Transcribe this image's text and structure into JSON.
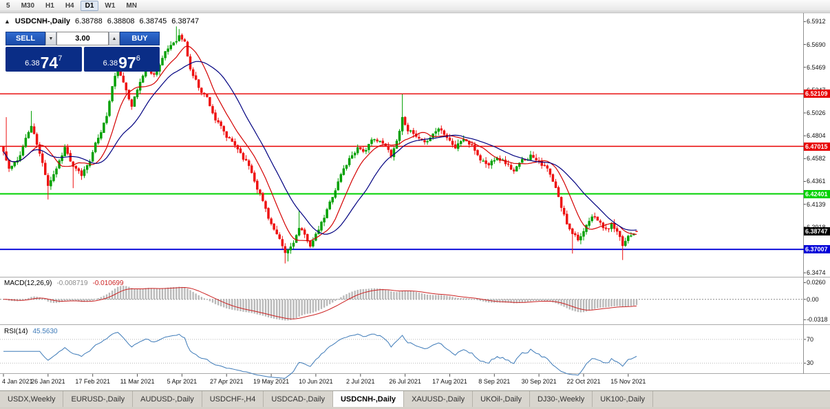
{
  "toolbar": {
    "timeframes": [
      "5",
      "M30",
      "H1",
      "H4",
      "D1",
      "W1",
      "MN"
    ],
    "active": "D1"
  },
  "chart": {
    "collapse_icon": "▲",
    "symbol_title": "USDCNH-,Daily",
    "ohlc": [
      "6.38788",
      "6.38808",
      "6.38745",
      "6.38747"
    ]
  },
  "one_click": {
    "sell_label": "SELL",
    "buy_label": "BUY",
    "volume": "3.00",
    "down_icon": "▼",
    "up_icon": "▲",
    "sell_quote": {
      "prefix": "6.38",
      "big": "74",
      "sup": "7"
    },
    "buy_quote": {
      "prefix": "6.38",
      "big": "97",
      "sup": "6"
    }
  },
  "price_axis_ticks": [
    "6.5912",
    "6.5690",
    "6.5469",
    "6.5247",
    "6.5026",
    "6.4804",
    "6.4582",
    "6.4361",
    "6.4139",
    "6.3918",
    "6.3696",
    "6.3474"
  ],
  "hlines": [
    {
      "label": "6.52109",
      "price": 6.52109,
      "color": "#e80000",
      "text_color": "#ffffff",
      "width": 1.4
    },
    {
      "label": "6.47015",
      "price": 6.47015,
      "color": "#e80000",
      "text_color": "#ffffff",
      "width": 1.4
    },
    {
      "label": "6.42401",
      "price": 6.42401,
      "color": "#00d200",
      "text_color": "#ffffff",
      "width": 2
    },
    {
      "label": "6.37007",
      "price": 6.37007,
      "color": "#0000d8",
      "text_color": "#ffffff",
      "width": 1.8
    }
  ],
  "current_price": {
    "label": "6.38747",
    "price": 6.38747,
    "bg": "#000000",
    "text_color": "#ffffff"
  },
  "macd_panel": {
    "name": "MACD(12,26,9)",
    "value_main": "-0.008719",
    "value_signal": "-0.010699",
    "axis_labels": [
      {
        "text": "0.0260",
        "value": 0.026
      },
      {
        "text": "0.00",
        "value": 0
      },
      {
        "text": "-0.0318",
        "value": -0.0318
      }
    ]
  },
  "rsi_panel": {
    "name": "RSI(14)",
    "value": "45.5630",
    "levels": [
      {
        "text": "70",
        "value": 70
      },
      {
        "text": "30",
        "value": 30
      }
    ]
  },
  "date_axis": [
    "4 Jan 2021",
    "26 Jan 2021",
    "17 Feb 2021",
    "11 Mar 2021",
    "5 Apr 2021",
    "27 Apr 2021",
    "19 May 2021",
    "10 Jun 2021",
    "2 Jul 2021",
    "26 Jul 2021",
    "17 Aug 2021",
    "8 Sep 2021",
    "30 Sep 2021",
    "22 Oct 2021",
    "15 Nov 2021"
  ],
  "tabs": [
    "USDX,Weekly",
    "EURUSD-,Daily",
    "AUDUSD-,Daily",
    "USDCHF-,H4",
    "USDCAD-,Daily",
    "USDCNH-,Daily",
    "XAUUSD-,Daily",
    "UKOil-,Daily",
    "DJ30-,Weekly",
    "UK100-,Daily"
  ],
  "active_tab": "USDCNH-,Daily",
  "chart_data": {
    "type": "candlestick",
    "symbol": "USDCNH-",
    "timeframe": "Daily",
    "n_candles": 228,
    "seed": 11,
    "price_top": 6.5995,
    "price_bottom": 6.3435,
    "label_stride": 16,
    "colors": {
      "up": "#00a000",
      "down": "#ee1111",
      "ma_fast": "#d40000",
      "ma_slow": "#000080",
      "hist": "#bbbbbb",
      "signal": "#cc2222",
      "rsi": "#3d7ab8"
    },
    "close_anchors": [
      [
        0,
        6.465
      ],
      [
        2,
        6.448
      ],
      [
        5,
        6.455
      ],
      [
        8,
        6.478
      ],
      [
        10,
        6.49
      ],
      [
        13,
        6.462
      ],
      [
        16,
        6.434
      ],
      [
        19,
        6.45
      ],
      [
        22,
        6.47
      ],
      [
        25,
        6.449
      ],
      [
        28,
        6.441
      ],
      [
        31,
        6.458
      ],
      [
        34,
        6.478
      ],
      [
        37,
        6.5
      ],
      [
        39,
        6.528
      ],
      [
        41,
        6.545
      ],
      [
        43,
        6.53
      ],
      [
        46,
        6.512
      ],
      [
        48,
        6.525
      ],
      [
        51,
        6.547
      ],
      [
        54,
        6.54
      ],
      [
        57,
        6.556
      ],
      [
        60,
        6.568
      ],
      [
        63,
        6.578
      ],
      [
        65,
        6.571
      ],
      [
        67,
        6.545
      ],
      [
        70,
        6.528
      ],
      [
        73,
        6.518
      ],
      [
        76,
        6.497
      ],
      [
        80,
        6.478
      ],
      [
        84,
        6.468
      ],
      [
        88,
        6.452
      ],
      [
        92,
        6.425
      ],
      [
        95,
        6.402
      ],
      [
        98,
        6.383
      ],
      [
        101,
        6.365
      ],
      [
        103,
        6.372
      ],
      [
        106,
        6.39
      ],
      [
        108,
        6.382
      ],
      [
        110,
        6.375
      ],
      [
        112,
        6.383
      ],
      [
        115,
        6.4
      ],
      [
        118,
        6.422
      ],
      [
        121,
        6.443
      ],
      [
        124,
        6.458
      ],
      [
        127,
        6.47
      ],
      [
        130,
        6.466
      ],
      [
        133,
        6.478
      ],
      [
        136,
        6.472
      ],
      [
        139,
        6.462
      ],
      [
        141,
        6.476
      ],
      [
        143,
        6.498
      ],
      [
        145,
        6.488
      ],
      [
        148,
        6.478
      ],
      [
        151,
        6.47
      ],
      [
        153,
        6.48
      ],
      [
        156,
        6.488
      ],
      [
        159,
        6.482
      ],
      [
        162,
        6.47
      ],
      [
        165,
        6.478
      ],
      [
        168,
        6.47
      ],
      [
        171,
        6.458
      ],
      [
        174,
        6.452
      ],
      [
        177,
        6.462
      ],
      [
        180,
        6.455
      ],
      [
        183,
        6.446
      ],
      [
        186,
        6.455
      ],
      [
        189,
        6.462
      ],
      [
        192,
        6.458
      ],
      [
        195,
        6.448
      ],
      [
        198,
        6.428
      ],
      [
        200,
        6.41
      ],
      [
        202,
        6.395
      ],
      [
        204,
        6.388
      ],
      [
        206,
        6.382
      ],
      [
        208,
        6.386
      ],
      [
        210,
        6.396
      ],
      [
        212,
        6.402
      ],
      [
        214,
        6.395
      ],
      [
        216,
        6.388
      ],
      [
        218,
        6.394
      ],
      [
        220,
        6.385
      ],
      [
        222,
        6.372
      ],
      [
        224,
        6.383
      ],
      [
        226,
        6.388
      ],
      [
        227,
        6.38747
      ]
    ],
    "wick_events": [
      {
        "i": 1,
        "high": 6.4985
      },
      {
        "i": 10,
        "high": 6.5045
      },
      {
        "i": 16,
        "low": 6.4185
      },
      {
        "i": 25,
        "low": 6.4295
      },
      {
        "i": 62,
        "high": 6.5865
      },
      {
        "i": 63,
        "high": 6.584
      },
      {
        "i": 101,
        "low": 6.3565
      },
      {
        "i": 102,
        "low": 6.3585
      },
      {
        "i": 106,
        "high": 6.4075
      },
      {
        "i": 143,
        "high": 6.5208
      },
      {
        "i": 204,
        "low": 6.366
      },
      {
        "i": 222,
        "low": 6.3598
      }
    ],
    "last_candle": {
      "open": 6.38788,
      "high": 6.38808,
      "low": 6.38745,
      "close": 6.38747
    },
    "ma_fast_period": 10,
    "ma_slow_period": 22,
    "macd": {
      "fast": 12,
      "slow": 26,
      "signal": 9
    },
    "rsi_period": 14
  }
}
